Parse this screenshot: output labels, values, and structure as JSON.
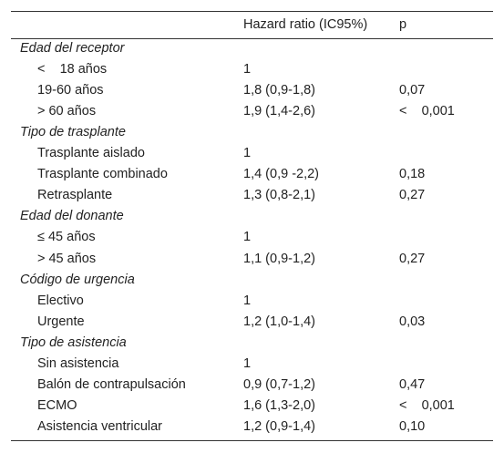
{
  "table": {
    "columns": [
      "Hazard ratio (IC95%)",
      "p"
    ],
    "groups": [
      {
        "title": "Edad del receptor",
        "rows": [
          [
            "<    18 años",
            "1"
          ],
          [
            "19-60 años",
            "1,8 (0,9-1,8)",
            "0,07"
          ],
          [
            "> 60 años",
            "1,9 (1,4-2,6)",
            "<    0,001"
          ]
        ]
      },
      {
        "title": "Tipo de trasplante",
        "rows": [
          [
            "Trasplante aislado",
            "1"
          ],
          [
            "Trasplante combinado",
            "1,4 (0,9 -2,2)",
            "0,18"
          ],
          [
            "Retrasplante",
            "1,3 (0,8-2,1)",
            "0,27"
          ]
        ]
      },
      {
        "title": "Edad del donante",
        "rows": [
          [
            "≤ 45 años",
            "1"
          ],
          [
            "> 45 años",
            "1,1 (0,9-1,2)",
            "0,27"
          ]
        ]
      },
      {
        "title": "Código de urgencia",
        "rows": [
          [
            "Electivo",
            "1"
          ],
          [
            "Urgente",
            "1,2 (1,0-1,4)",
            "0,03"
          ]
        ]
      },
      {
        "title": "Tipo de asistencia",
        "rows": [
          [
            "Sin asistencia",
            "1"
          ],
          [
            "Balón de contrapulsación",
            "0,9 (0,7-1,2)",
            "0,47"
          ],
          [
            "ECMO",
            "1,6 (1,3-2,0)",
            "<    0,001"
          ],
          [
            "Asistencia ventricular",
            "1,2 (0,9-1,4)",
            "0,10"
          ]
        ]
      }
    ]
  }
}
